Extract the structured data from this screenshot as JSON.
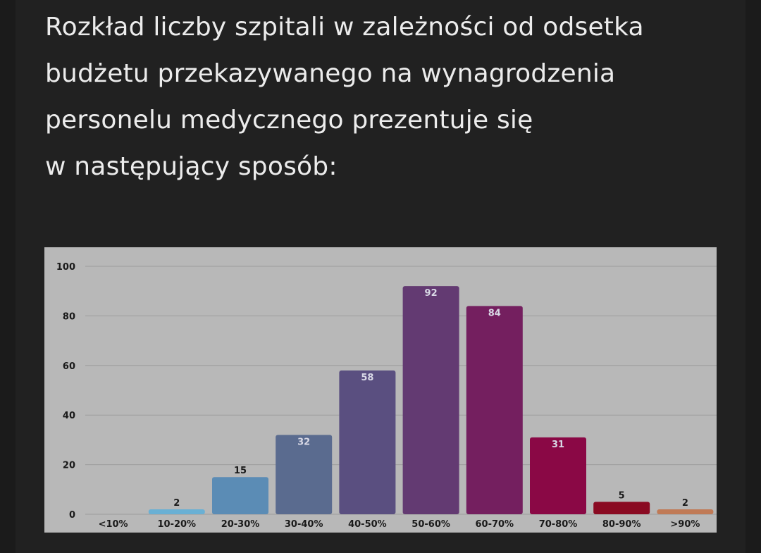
{
  "heading": "Rozkład liczby szpitali w zależności od odsetka\nbudżetu przekazywanego na wynagrodzenia\npersonelu medycznego prezentuje się\nw następujący sposób:",
  "chart_data": {
    "type": "bar",
    "categories": [
      "<10%",
      "10-20%",
      "20-30%",
      "30-40%",
      "40-50%",
      "50-60%",
      "60-70%",
      "70-80%",
      "80-90%",
      ">90%"
    ],
    "values": [
      0,
      2,
      15,
      32,
      58,
      92,
      84,
      31,
      5,
      2
    ],
    "data_labels": [
      "",
      "2",
      "15",
      "32",
      "58",
      "92",
      "84",
      "31",
      "5",
      "2"
    ],
    "bar_colors": [
      "#6ab0d4",
      "#6ab0d4",
      "#5b8cb5",
      "#5a6b8f",
      "#5a4f80",
      "#633a72",
      "#741f5f",
      "#8a0845",
      "#8a0a22",
      "#c07a56"
    ],
    "label_colors": [
      "#1a1a1a",
      "#1a1a1a",
      "#1a1a1a",
      "#d9d9e6",
      "#d9d9e6",
      "#d9d9e6",
      "#d9d9e6",
      "#d9d9e6",
      "#1a1a1a",
      "#1a1a1a"
    ],
    "y_ticks": [
      "0",
      "20",
      "40",
      "60",
      "80",
      "100"
    ],
    "ylim": [
      0,
      100
    ],
    "grid": true,
    "title": "",
    "xlabel": "",
    "ylabel": ""
  }
}
